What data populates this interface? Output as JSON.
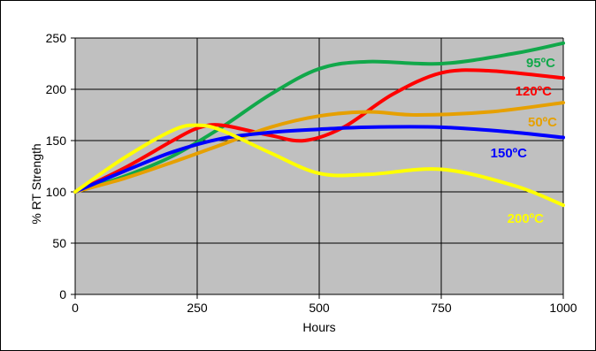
{
  "chart_data": {
    "type": "line",
    "title": "",
    "xlabel": "Hours",
    "ylabel": "% RT Strength",
    "xlim": [
      0,
      1000
    ],
    "ylim": [
      0,
      250
    ],
    "xticks": [
      "0",
      "250",
      "500",
      "750",
      "1000"
    ],
    "yticks": [
      "0",
      "50",
      "100",
      "150",
      "200",
      "250"
    ],
    "grid": true,
    "plot_background": "#c0c0c0",
    "series": [
      {
        "name": "95ºC",
        "color": "#11a84a",
        "x": [
          0,
          100,
          200,
          300,
          400,
          500,
          600,
          750,
          900,
          1000
        ],
        "y": [
          100,
          115,
          135,
          163,
          195,
          220,
          227,
          225,
          235,
          245
        ]
      },
      {
        "name": "120ºC",
        "color": "#ff0000",
        "x": [
          0,
          100,
          200,
          250,
          300,
          400,
          470,
          550,
          650,
          750,
          850,
          1000
        ],
        "y": [
          100,
          123,
          150,
          162,
          165,
          155,
          150,
          163,
          195,
          216,
          218,
          211
        ]
      },
      {
        "name": "50ºC",
        "color": "#e6a000",
        "x": [
          0,
          100,
          200,
          300,
          400,
          500,
          600,
          700,
          850,
          1000
        ],
        "y": [
          100,
          113,
          129,
          146,
          163,
          174,
          178,
          175,
          178,
          187
        ]
      },
      {
        "name": "150ºC",
        "color": "#0000ff",
        "x": [
          0,
          100,
          200,
          300,
          400,
          500,
          600,
          750,
          900,
          1000
        ],
        "y": [
          100,
          120,
          139,
          152,
          158,
          161,
          163,
          163,
          158,
          153
        ]
      },
      {
        "name": "200ºC",
        "color": "#ffff00",
        "x": [
          0,
          100,
          200,
          250,
          300,
          400,
          500,
          600,
          750,
          900,
          1000
        ],
        "y": [
          100,
          133,
          160,
          165,
          160,
          138,
          118,
          117,
          122,
          106,
          87
        ]
      }
    ]
  }
}
